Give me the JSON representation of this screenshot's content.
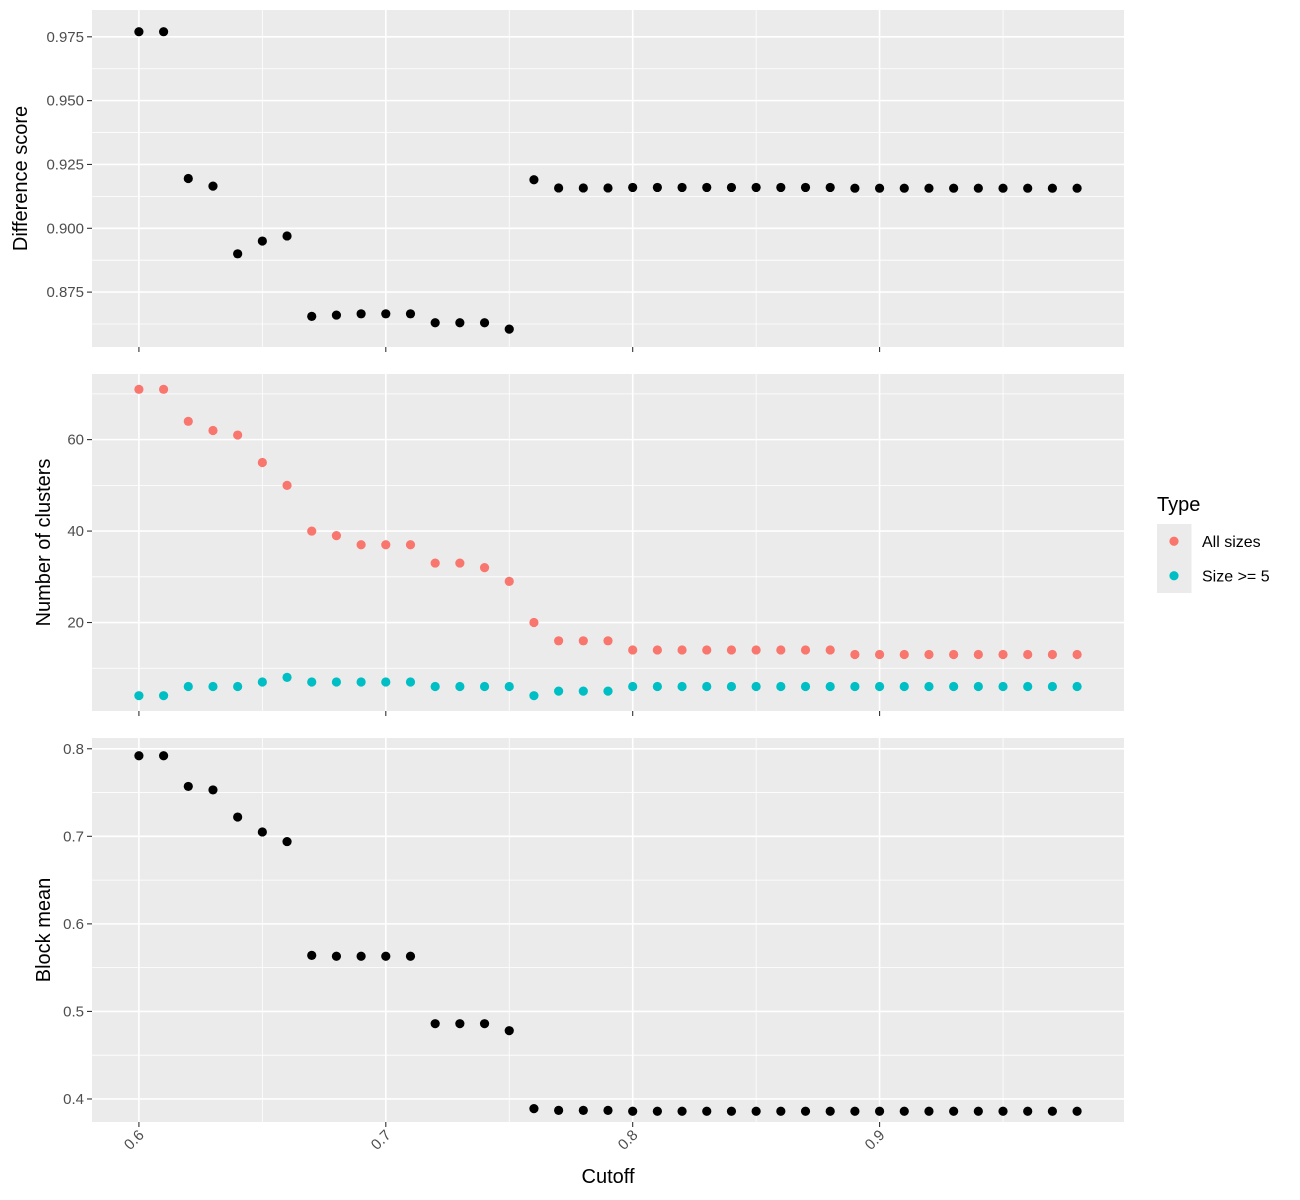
{
  "chart_data": [
    {
      "type": "scatter",
      "ylabel": "Difference score",
      "x": [
        0.6,
        0.61,
        0.62,
        0.63,
        0.64,
        0.65,
        0.66,
        0.67,
        0.68,
        0.69,
        0.7,
        0.71,
        0.72,
        0.73,
        0.74,
        0.75,
        0.76,
        0.77,
        0.78,
        0.79,
        0.8,
        0.81,
        0.82,
        0.83,
        0.84,
        0.85,
        0.86,
        0.87,
        0.88,
        0.89,
        0.9,
        0.91,
        0.92,
        0.93,
        0.94,
        0.95,
        0.96,
        0.97,
        0.98
      ],
      "series": [
        {
          "color": "#000000",
          "values": [
            0.977,
            0.977,
            0.9195,
            0.9165,
            0.89,
            0.895,
            0.897,
            0.8655,
            0.866,
            0.8665,
            0.8665,
            0.8665,
            0.863,
            0.863,
            0.863,
            0.8605,
            0.919,
            0.9158,
            0.9158,
            0.9158,
            0.916,
            0.916,
            0.916,
            0.916,
            0.916,
            0.916,
            0.916,
            0.916,
            0.916,
            0.9157,
            0.9157,
            0.9157,
            0.9157,
            0.9157,
            0.9157,
            0.9157,
            0.9157,
            0.9157,
            0.9157
          ]
        }
      ],
      "ylim": [
        0.8535,
        0.9855
      ],
      "yticks": [
        0.875,
        0.9,
        0.925,
        0.95,
        0.975
      ],
      "ytick_labels": [
        "0.875",
        "0.900",
        "0.925",
        "0.950",
        "0.975"
      ]
    },
    {
      "type": "scatter",
      "ylabel": "Number of clusters",
      "x": [
        0.6,
        0.61,
        0.62,
        0.63,
        0.64,
        0.65,
        0.66,
        0.67,
        0.68,
        0.69,
        0.7,
        0.71,
        0.72,
        0.73,
        0.74,
        0.75,
        0.76,
        0.77,
        0.78,
        0.79,
        0.8,
        0.81,
        0.82,
        0.83,
        0.84,
        0.85,
        0.86,
        0.87,
        0.88,
        0.89,
        0.9,
        0.91,
        0.92,
        0.93,
        0.94,
        0.95,
        0.96,
        0.97,
        0.98
      ],
      "series": [
        {
          "name": "All sizes",
          "color": "#F8766D",
          "values": [
            71,
            71,
            64,
            62,
            61,
            55,
            50,
            40,
            39,
            37,
            37,
            37,
            33,
            33,
            32,
            29,
            20,
            16,
            16,
            16,
            14,
            14,
            14,
            14,
            14,
            14,
            14,
            14,
            14,
            13,
            13,
            13,
            13,
            13,
            13,
            13,
            13,
            13,
            13
          ]
        },
        {
          "name": "Size >= 5",
          "color": "#00BFC4",
          "values": [
            4,
            4,
            6,
            6,
            6,
            7,
            8,
            7,
            7,
            7,
            7,
            7,
            6,
            6,
            6,
            6,
            4,
            5,
            5,
            5,
            6,
            6,
            6,
            6,
            6,
            6,
            6,
            6,
            6,
            6,
            6,
            6,
            6,
            6,
            6,
            6,
            6,
            6,
            6
          ]
        }
      ],
      "ylim": [
        0.65,
        74.35
      ],
      "yticks": [
        20,
        40,
        60
      ],
      "ytick_labels": [
        "20",
        "40",
        "60"
      ]
    },
    {
      "type": "scatter",
      "ylabel": "Block mean",
      "xlabel": "Cutoff",
      "x": [
        0.6,
        0.61,
        0.62,
        0.63,
        0.64,
        0.65,
        0.66,
        0.67,
        0.68,
        0.69,
        0.7,
        0.71,
        0.72,
        0.73,
        0.74,
        0.75,
        0.76,
        0.77,
        0.78,
        0.79,
        0.8,
        0.81,
        0.82,
        0.83,
        0.84,
        0.85,
        0.86,
        0.87,
        0.88,
        0.89,
        0.9,
        0.91,
        0.92,
        0.93,
        0.94,
        0.95,
        0.96,
        0.97,
        0.98
      ],
      "series": [
        {
          "color": "#000000",
          "values": [
            0.792,
            0.792,
            0.757,
            0.753,
            0.722,
            0.705,
            0.694,
            0.564,
            0.563,
            0.563,
            0.563,
            0.563,
            0.486,
            0.486,
            0.486,
            0.478,
            0.389,
            0.387,
            0.387,
            0.387,
            0.386,
            0.386,
            0.386,
            0.386,
            0.386,
            0.386,
            0.386,
            0.386,
            0.386,
            0.386,
            0.386,
            0.386,
            0.386,
            0.386,
            0.386,
            0.386,
            0.386,
            0.386,
            0.386
          ]
        }
      ],
      "ylim": [
        0.3737,
        0.8123
      ],
      "yticks": [
        0.4,
        0.5,
        0.6,
        0.7,
        0.8
      ],
      "ytick_labels": [
        "0.4",
        "0.5",
        "0.6",
        "0.7",
        "0.8"
      ]
    }
  ],
  "x_axis": {
    "ticks": [
      0.6,
      0.7,
      0.8,
      0.9
    ],
    "tick_labels": [
      "0.6",
      "0.7",
      "0.8",
      "0.9"
    ],
    "xlim": [
      0.581,
      0.999
    ]
  },
  "legend": {
    "title": "Type",
    "placement": "right",
    "items": [
      {
        "label": "All sizes",
        "color": "#F8766D"
      },
      {
        "label": "Size >= 5",
        "color": "#00BFC4"
      }
    ]
  }
}
